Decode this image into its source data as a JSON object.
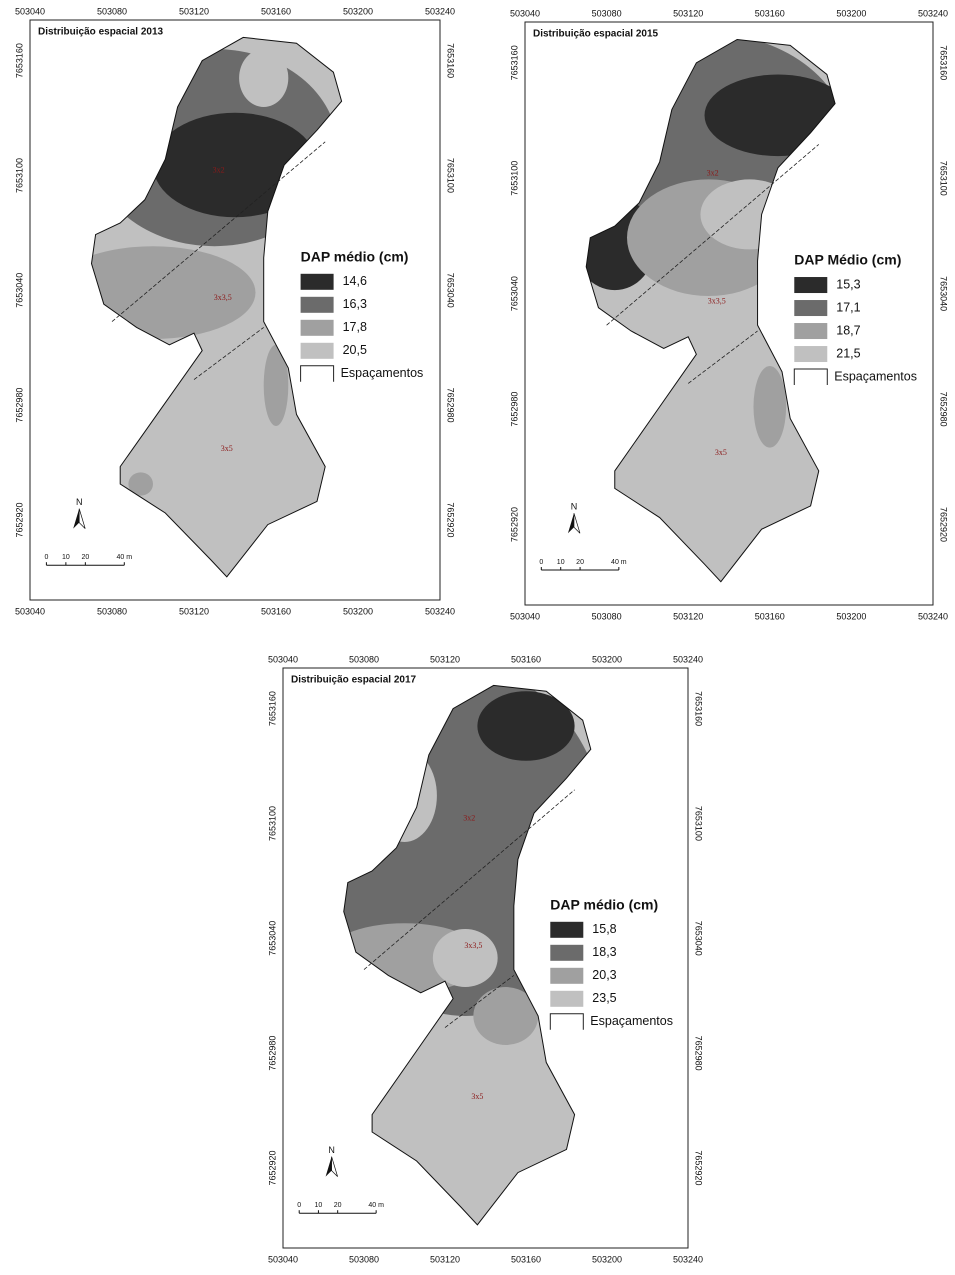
{
  "maps": [
    {
      "title": "Distribuição espacial 2013",
      "x_ticks": [
        "503040",
        "503080",
        "503120",
        "503160",
        "503200",
        "503240"
      ],
      "y_ticks": [
        "7653160",
        "7653100",
        "7653040",
        "7652980",
        "7652920"
      ],
      "legend": {
        "title": "DAP médio (cm)",
        "items": [
          "14,6",
          "16,3",
          "17,8",
          "20,5"
        ],
        "spacing": "Espaçamentos"
      },
      "plots": [
        "3x2",
        "3x3,5",
        "3x5"
      ],
      "north": "N",
      "scale": [
        "0",
        "10",
        "20",
        "40 m"
      ]
    },
    {
      "title": "Distribuição espacial 2015",
      "x_ticks": [
        "503040",
        "503080",
        "503120",
        "503160",
        "503200",
        "503240"
      ],
      "y_ticks": [
        "7653160",
        "7653100",
        "7653040",
        "7652980",
        "7652920"
      ],
      "legend": {
        "title": "DAP Médio (cm)",
        "items": [
          "15,3",
          "17,1",
          "18,7",
          "21,5"
        ],
        "spacing": "Espaçamentos"
      },
      "plots": [
        "3x2",
        "3x3,5",
        "3x5"
      ],
      "north": "N",
      "scale": [
        "0",
        "10",
        "20",
        "40 m"
      ]
    },
    {
      "title": "Distribuição espacial 2017",
      "x_ticks": [
        "503040",
        "503080",
        "503120",
        "503160",
        "503200",
        "503240"
      ],
      "y_ticks": [
        "7653160",
        "7653100",
        "7653040",
        "7652980",
        "7652920"
      ],
      "legend": {
        "title": "DAP médio (cm)",
        "items": [
          "15,8",
          "18,3",
          "20,3",
          "23,5"
        ],
        "spacing": "Espaçamentos"
      },
      "plots": [
        "3x2",
        "3x3,5",
        "3x5"
      ],
      "north": "N",
      "scale": [
        "0",
        "10",
        "20",
        "40 m"
      ]
    }
  ]
}
